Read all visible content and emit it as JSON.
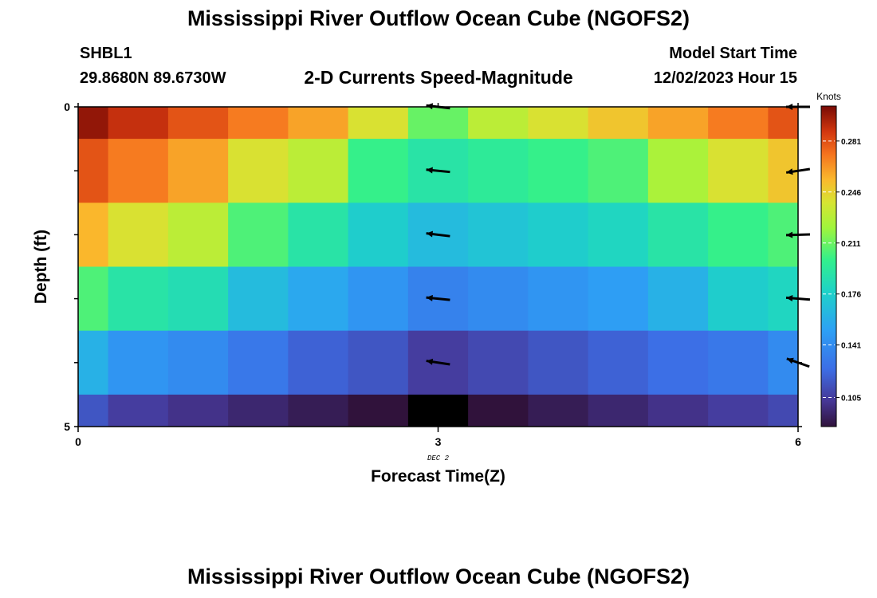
{
  "title": "Mississippi River Outflow Ocean Cube (NGOFS2)",
  "title_repeat": "Mississippi River Outflow Ocean Cube (NGOFS2)",
  "station": {
    "id": "SHBL1",
    "coords": "29.8680N  89.6730W"
  },
  "subtitle": "2-D Currents Speed-Magnitude",
  "model_start": {
    "label": "Model Start Time",
    "value": "12/02/2023 Hour 15"
  },
  "chart_data": {
    "type": "heatmap",
    "title": "2-D Currents Speed-Magnitude",
    "xlabel": "Forecast Time(Z)",
    "ylabel": "Depth (ft)",
    "xlim": [
      0,
      6
    ],
    "ylim": [
      0,
      5
    ],
    "x_ticks": [
      "0",
      "3",
      "6"
    ],
    "y_ticks": [
      "0",
      "5"
    ],
    "date_annotation": "DEC 2",
    "colorbar": {
      "unit": "Knots",
      "ticks": [
        "0.281",
        "0.246",
        "0.211",
        "0.176",
        "0.141",
        "0.105"
      ],
      "tick_values": [
        0.281,
        0.246,
        0.211,
        0.176,
        0.141,
        0.105
      ],
      "range": [
        0.085,
        0.305
      ]
    },
    "x": [
      0,
      0.5,
      1,
      1.5,
      2,
      2.5,
      3,
      3.5,
      4,
      4.5,
      5,
      5.5,
      6
    ],
    "depth_rows": [
      0,
      1,
      2,
      3,
      4,
      5
    ],
    "values": [
      [
        0.3,
        0.29,
        0.28,
        0.27,
        0.26,
        0.24,
        0.21,
        0.23,
        0.24,
        0.25,
        0.26,
        0.27,
        0.28
      ],
      [
        0.28,
        0.27,
        0.26,
        0.24,
        0.23,
        0.2,
        0.19,
        0.195,
        0.2,
        0.205,
        0.225,
        0.24,
        0.25
      ],
      [
        0.255,
        0.24,
        0.23,
        0.205,
        0.19,
        0.175,
        0.165,
        0.17,
        0.175,
        0.18,
        0.19,
        0.2,
        0.205
      ],
      [
        0.205,
        0.19,
        0.185,
        0.165,
        0.155,
        0.145,
        0.135,
        0.14,
        0.145,
        0.15,
        0.16,
        0.175,
        0.18
      ],
      [
        0.16,
        0.145,
        0.14,
        0.13,
        0.12,
        0.115,
        0.105,
        0.11,
        0.115,
        0.12,
        0.125,
        0.13,
        0.14
      ],
      [
        0.115,
        0.105,
        0.1,
        0.095,
        0.09,
        0.085,
        0.07,
        0.085,
        0.09,
        0.095,
        0.1,
        0.105,
        0.11
      ]
    ],
    "vectors": [
      {
        "x": 3,
        "depth": 0,
        "u": -1.0,
        "v": 0.12
      },
      {
        "x": 3,
        "depth": 1,
        "u": -1.0,
        "v": 0.1
      },
      {
        "x": 3,
        "depth": 2,
        "u": -1.0,
        "v": 0.12
      },
      {
        "x": 3,
        "depth": 3,
        "u": -1.0,
        "v": 0.1
      },
      {
        "x": 3,
        "depth": 4,
        "u": -1.0,
        "v": 0.15
      },
      {
        "x": 6,
        "depth": 0,
        "u": -1.0,
        "v": 0.0
      },
      {
        "x": 6,
        "depth": 1,
        "u": -1.0,
        "v": -0.15
      },
      {
        "x": 6,
        "depth": 2,
        "u": -1.0,
        "v": -0.03
      },
      {
        "x": 6,
        "depth": 3,
        "u": -1.0,
        "v": 0.08
      },
      {
        "x": 6,
        "depth": 4,
        "u": -1.0,
        "v": 0.35
      }
    ]
  }
}
